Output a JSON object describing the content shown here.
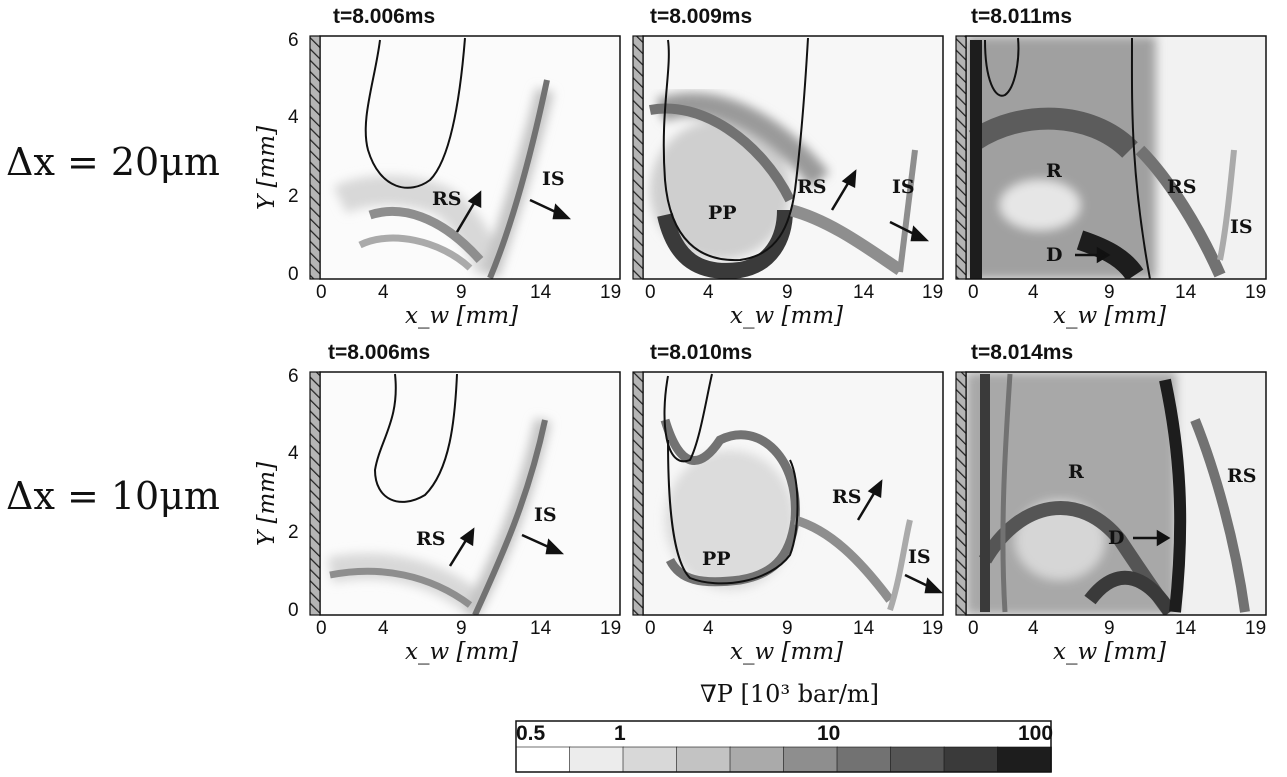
{
  "rows": [
    {
      "label": "Δx = 20μm"
    },
    {
      "label": "Δx = 10μm"
    }
  ],
  "panels": [
    {
      "title": "t=8.006ms",
      "annotations": [
        "RS",
        "IS"
      ]
    },
    {
      "title": "t=8.009ms",
      "annotations": [
        "PP",
        "RS",
        "IS"
      ]
    },
    {
      "title": "t=8.011ms",
      "annotations": [
        "R",
        "RS",
        "IS",
        "D"
      ]
    },
    {
      "title": "t=8.006ms",
      "annotations": [
        "RS",
        "IS"
      ]
    },
    {
      "title": "t=8.010ms",
      "annotations": [
        "PP",
        "RS",
        "IS"
      ]
    },
    {
      "title": "t=8.014ms",
      "annotations": [
        "R",
        "RS",
        "D"
      ]
    }
  ],
  "axes": {
    "xlabel": "x_w [mm]",
    "ylabel": "Y [mm]",
    "xticks": [
      "0",
      "4",
      "9",
      "14",
      "19"
    ],
    "yticks": [
      "0",
      "2",
      "4",
      "6"
    ],
    "xlim": [
      0,
      19
    ],
    "ylim": [
      0,
      6
    ]
  },
  "colorbar": {
    "title": "∇P [10³ bar/m]",
    "tick_labels": [
      "0.5",
      "1",
      "10",
      "100"
    ],
    "range": [
      0.5,
      100
    ],
    "scale": "log",
    "levels": 10,
    "colors": [
      "#ffffff",
      "#ececec",
      "#d8d8d8",
      "#c3c3c3",
      "#aaaaaa",
      "#8e8e8e",
      "#727272",
      "#555555",
      "#3a3a3a",
      "#1d1d1d"
    ]
  }
}
